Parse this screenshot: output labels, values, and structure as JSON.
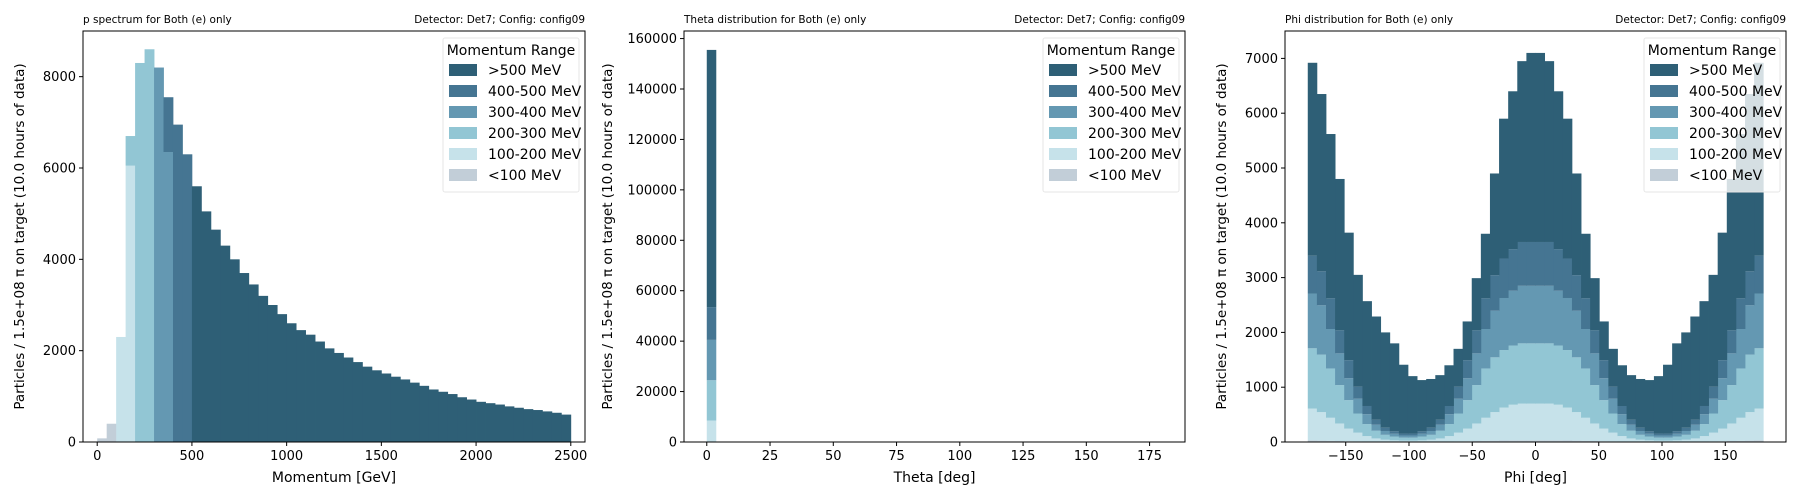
{
  "figure": {
    "background": "#ffffff",
    "legend_title": "Momentum Range",
    "legend_labels": [
      ">500 MeV",
      "400-500 MeV",
      "300-400 MeV",
      "200-300 MeV",
      "100-200 MeV",
      "<100 MeV"
    ]
  },
  "chart_data": [
    {
      "type": "bar",
      "stacked": true,
      "title_left": "p spectrum for Both (e) only",
      "title_right": "Detector: Det7; Config: config09",
      "xlabel": "Momentum [GeV]",
      "ylabel": "Particles / 1.5e+08 π on target (10.0 hours of data)",
      "xlim": [
        -75,
        2575
      ],
      "ylim": [
        0,
        9000
      ],
      "xticks": [
        0,
        500,
        1000,
        1500,
        2000,
        2500
      ],
      "yticks": [
        0,
        2000,
        4000,
        6000,
        8000
      ],
      "legend_title": "Momentum Range",
      "legend_position": "top-right",
      "bin_edges": [
        0,
        50,
        100,
        150,
        200,
        250,
        300,
        350,
        400,
        450,
        500,
        550,
        600,
        650,
        700,
        750,
        800,
        850,
        900,
        950,
        1000,
        1050,
        1100,
        1150,
        1200,
        1250,
        1300,
        1350,
        1400,
        1450,
        1500,
        1550,
        1600,
        1650,
        1700,
        1750,
        1800,
        1850,
        1900,
        1950,
        2000,
        2050,
        2100,
        2150,
        2200,
        2250,
        2300,
        2350,
        2400,
        2450,
        2500
      ],
      "series": [
        {
          "name": "<100 MeV",
          "color": "#c2ced8",
          "values": [
            80,
            400,
            0,
            0,
            0,
            0,
            0,
            0,
            0,
            0,
            0,
            0,
            0,
            0,
            0,
            0,
            0,
            0,
            0,
            0,
            0,
            0,
            0,
            0,
            0,
            0,
            0,
            0,
            0,
            0,
            0,
            0,
            0,
            0,
            0,
            0,
            0,
            0,
            0,
            0,
            0,
            0,
            0,
            0,
            0,
            0,
            0,
            0,
            0,
            0
          ]
        },
        {
          "name": "100-200 MeV",
          "color": "#c6e2ea",
          "values": [
            0,
            0,
            2300,
            6050,
            0,
            0,
            0,
            0,
            0,
            0,
            0,
            0,
            0,
            0,
            0,
            0,
            0,
            0,
            0,
            0,
            0,
            0,
            0,
            0,
            0,
            0,
            0,
            0,
            0,
            0,
            0,
            0,
            0,
            0,
            0,
            0,
            0,
            0,
            0,
            0,
            0,
            0,
            0,
            0,
            0,
            0,
            0,
            0,
            0,
            0
          ]
        },
        {
          "name": "200-300 MeV",
          "color": "#92c6d4",
          "values": [
            0,
            0,
            0,
            650,
            8300,
            8600,
            0,
            0,
            0,
            0,
            0,
            0,
            0,
            0,
            0,
            0,
            0,
            0,
            0,
            0,
            0,
            0,
            0,
            0,
            0,
            0,
            0,
            0,
            0,
            0,
            0,
            0,
            0,
            0,
            0,
            0,
            0,
            0,
            0,
            0,
            0,
            0,
            0,
            0,
            0,
            0,
            0,
            0,
            0,
            0
          ]
        },
        {
          "name": "300-400 MeV",
          "color": "#6498b2",
          "values": [
            0,
            0,
            0,
            0,
            0,
            0,
            8200,
            6350,
            0,
            0,
            0,
            0,
            0,
            0,
            0,
            0,
            0,
            0,
            0,
            0,
            0,
            0,
            0,
            0,
            0,
            0,
            0,
            0,
            0,
            0,
            0,
            0,
            0,
            0,
            0,
            0,
            0,
            0,
            0,
            0,
            0,
            0,
            0,
            0,
            0,
            0,
            0,
            0,
            0,
            0
          ]
        },
        {
          "name": "400-500 MeV",
          "color": "#457592",
          "values": [
            0,
            0,
            0,
            0,
            0,
            0,
            0,
            1200,
            6950,
            6300,
            0,
            0,
            0,
            0,
            0,
            0,
            0,
            0,
            0,
            0,
            0,
            0,
            0,
            0,
            0,
            0,
            0,
            0,
            0,
            0,
            0,
            0,
            0,
            0,
            0,
            0,
            0,
            0,
            0,
            0,
            0,
            0,
            0,
            0,
            0,
            0,
            0,
            0,
            0,
            0
          ]
        },
        {
          "name": ">500 MeV",
          "color": "#2e5f76",
          "values": [
            0,
            0,
            0,
            0,
            0,
            0,
            0,
            0,
            0,
            0,
            5600,
            5050,
            4650,
            4300,
            4000,
            3700,
            3450,
            3200,
            3000,
            2800,
            2600,
            2450,
            2350,
            2200,
            2050,
            1950,
            1850,
            1750,
            1650,
            1570,
            1500,
            1430,
            1370,
            1300,
            1230,
            1150,
            1100,
            1050,
            980,
            930,
            880,
            850,
            820,
            780,
            750,
            720,
            700,
            670,
            640,
            600
          ]
        }
      ]
    },
    {
      "type": "bar",
      "stacked": true,
      "title_left": "Theta distribution for Both (e) only",
      "title_right": "Detector: Det7; Config: config09",
      "xlabel": "Theta [deg]",
      "ylabel": "Particles / 1.5e+08 π on target (10.0 hours of data)",
      "xlim": [
        -9,
        189
      ],
      "ylim": [
        0,
        163000
      ],
      "xticks": [
        0,
        25,
        50,
        75,
        100,
        125,
        150,
        175
      ],
      "yticks": [
        0,
        20000,
        40000,
        60000,
        80000,
        100000,
        120000,
        140000,
        160000
      ],
      "legend_title": "Momentum Range",
      "legend_position": "top-right",
      "bin_edges": [
        0,
        3.6
      ],
      "series": [
        {
          "name": "<100 MeV",
          "color": "#c2ced8",
          "values": [
            200
          ]
        },
        {
          "name": "100-200 MeV",
          "color": "#c6e2ea",
          "values": [
            8300
          ]
        },
        {
          "name": "200-300 MeV",
          "color": "#92c6d4",
          "values": [
            16000
          ]
        },
        {
          "name": "300-400 MeV",
          "color": "#6498b2",
          "values": [
            16000
          ]
        },
        {
          "name": "400-500 MeV",
          "color": "#457592",
          "values": [
            13000
          ]
        },
        {
          "name": ">500 MeV",
          "color": "#2e5f76",
          "values": [
            102000
          ]
        }
      ]
    },
    {
      "type": "bar",
      "stacked": true,
      "title_left": "Phi distribution for Both (e) only",
      "title_right": "Detector: Det7; Config: config09",
      "xlabel": "Phi [deg]",
      "ylabel": "Particles / 1.5e+08 π on target (10.0 hours of data)",
      "xlim": [
        -198,
        198
      ],
      "ylim": [
        0,
        7500
      ],
      "xticks": [
        -150,
        -100,
        -50,
        0,
        50,
        100,
        150
      ],
      "yticks": [
        0,
        1000,
        2000,
        3000,
        4000,
        5000,
        6000,
        7000
      ],
      "legend_title": "Momentum Range",
      "legend_position": "top-right",
      "bin_edges": [
        -180,
        -172.8,
        -165.6,
        -158.4,
        -151.2,
        -144,
        -136.8,
        -129.6,
        -122.4,
        -115.2,
        -108,
        -100.8,
        -93.6,
        -86.4,
        -79.2,
        -72,
        -64.8,
        -57.6,
        -50.4,
        -43.2,
        -36,
        -28.8,
        -21.6,
        -14.4,
        -7.2,
        0,
        7.2,
        14.4,
        21.6,
        28.8,
        36,
        43.2,
        50.4,
        57.6,
        64.8,
        72,
        79.2,
        86.4,
        93.6,
        100.8,
        108,
        115.2,
        122.4,
        129.6,
        136.8,
        144,
        151.2,
        158.4,
        165.6,
        172.8,
        180
      ],
      "series": [
        {
          "name": "<100 MeV",
          "color": "#c2ced8",
          "values": [
            30,
            25,
            22,
            18,
            14,
            10,
            7,
            5,
            3,
            2,
            2,
            2,
            2,
            3,
            5,
            7,
            10,
            14,
            18,
            22,
            25,
            28,
            30,
            30,
            30,
            30,
            30,
            30,
            28,
            25,
            22,
            18,
            14,
            10,
            7,
            5,
            3,
            2,
            2,
            2,
            2,
            3,
            5,
            7,
            10,
            14,
            18,
            22,
            25,
            30
          ]
        },
        {
          "name": "100-200 MeV",
          "color": "#c6e2ea",
          "values": [
            580,
            520,
            420,
            320,
            230,
            160,
            100,
            60,
            38,
            28,
            22,
            22,
            28,
            38,
            60,
            100,
            160,
            230,
            320,
            420,
            520,
            600,
            650,
            670,
            670,
            670,
            670,
            650,
            600,
            520,
            420,
            320,
            230,
            160,
            100,
            60,
            38,
            28,
            22,
            22,
            28,
            38,
            60,
            100,
            160,
            230,
            320,
            420,
            520,
            580
          ]
        },
        {
          "name": "200-300 MeV",
          "color": "#92c6d4",
          "values": [
            1100,
            1050,
            900,
            700,
            520,
            350,
            220,
            140,
            90,
            70,
            55,
            55,
            70,
            90,
            140,
            220,
            350,
            520,
            700,
            900,
            1000,
            1050,
            1080,
            1100,
            1100,
            1100,
            1100,
            1080,
            1050,
            1000,
            900,
            700,
            520,
            350,
            220,
            140,
            90,
            70,
            55,
            55,
            70,
            90,
            140,
            220,
            350,
            520,
            700,
            900,
            1050,
            1100
          ]
        },
        {
          "name": "300-400 MeV",
          "color": "#6498b2",
          "values": [
            1000,
            900,
            720,
            580,
            400,
            270,
            180,
            110,
            70,
            50,
            40,
            40,
            50,
            70,
            110,
            180,
            270,
            400,
            580,
            720,
            850,
            950,
            1000,
            1050,
            1050,
            1050,
            1050,
            1000,
            950,
            850,
            720,
            580,
            400,
            270,
            180,
            110,
            70,
            50,
            40,
            40,
            50,
            70,
            110,
            180,
            270,
            400,
            580,
            720,
            900,
            1000
          ]
        },
        {
          "name": "400-500 MeV",
          "color": "#457592",
          "values": [
            690,
            620,
            560,
            420,
            330,
            220,
            150,
            90,
            60,
            45,
            35,
            35,
            45,
            60,
            90,
            150,
            220,
            330,
            420,
            560,
            650,
            720,
            760,
            800,
            800,
            800,
            800,
            760,
            720,
            650,
            560,
            420,
            330,
            220,
            150,
            90,
            60,
            45,
            35,
            35,
            45,
            60,
            90,
            150,
            220,
            330,
            420,
            560,
            620,
            690
          ]
        },
        {
          "name": ">500 MeV",
          "color": "#2e5f76",
          "values": [
            3520,
            3235,
            2998,
            2762,
            2326,
            2040,
            1913,
            1885,
            1739,
            1605,
            1256,
            1048,
            935,
            889,
            815,
            743,
            690,
            706,
            952,
            1178,
            1855,
            2552,
            2880,
            3300,
            3450,
            3450,
            3300,
            2880,
            2552,
            1855,
            1178,
            952,
            706,
            690,
            743,
            815,
            889,
            935,
            1048,
            1256,
            1605,
            1739,
            1885,
            1913,
            2040,
            2326,
            2762,
            2998,
            3235,
            3520
          ]
        }
      ]
    }
  ]
}
